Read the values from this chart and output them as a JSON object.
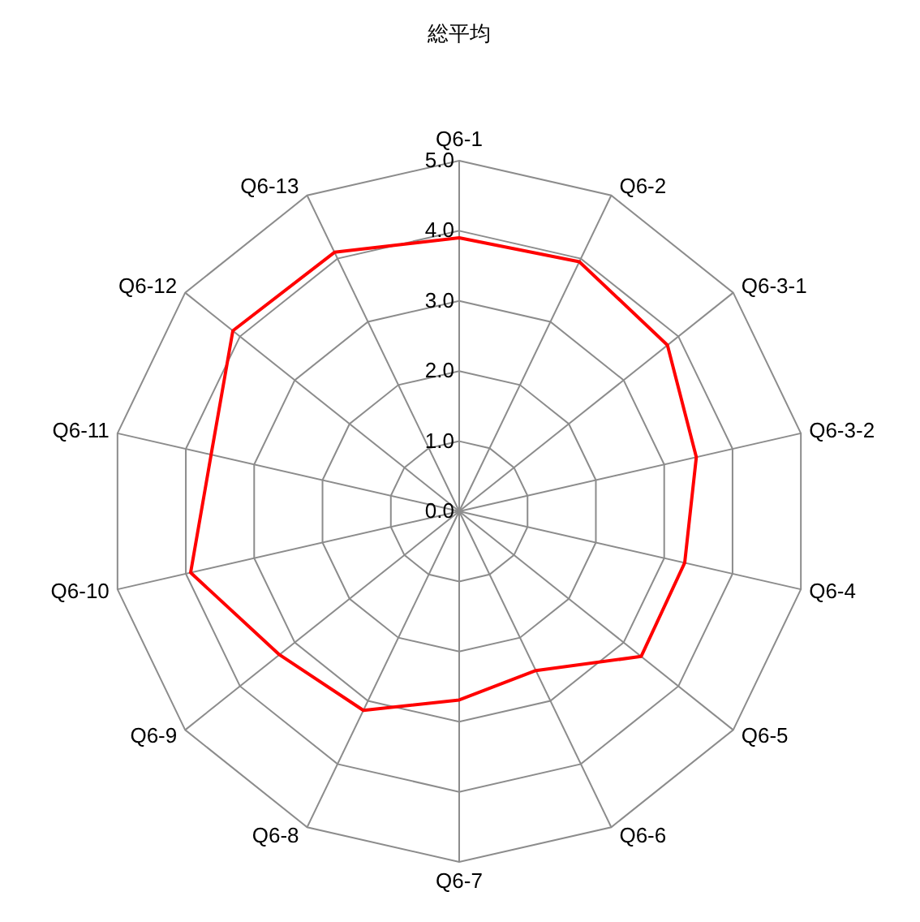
{
  "chart_data": {
    "type": "radar",
    "title": "総平均",
    "categories": [
      "Q6-1",
      "Q6-2",
      "Q6-3-1",
      "Q6-3-2",
      "Q6-4",
      "Q6-5",
      "Q6-6",
      "Q6-7",
      "Q6-8",
      "Q6-9",
      "Q6-10",
      "Q6-11",
      "Q6-12",
      "Q6-13"
    ],
    "series": [
      {
        "color": "#ff0000",
        "values": [
          3.9,
          3.95,
          3.8,
          3.47,
          3.3,
          3.32,
          2.52,
          2.69,
          3.15,
          3.28,
          3.93,
          3.63,
          4.13,
          4.1
        ]
      }
    ],
    "ylim": [
      0,
      5
    ],
    "yticks": [
      {
        "value": 0,
        "label": "0.0"
      },
      {
        "value": 1,
        "label": "1.0"
      },
      {
        "value": 2,
        "label": "2.0"
      },
      {
        "value": 3,
        "label": "3.0"
      },
      {
        "value": 4,
        "label": "4.0"
      },
      {
        "value": 5,
        "label": "5.0"
      }
    ],
    "grid": true
  }
}
